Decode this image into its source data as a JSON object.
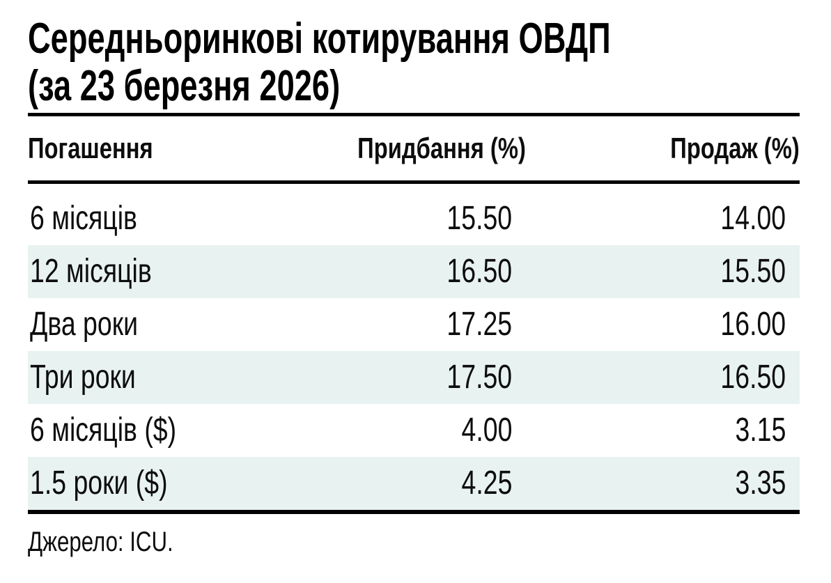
{
  "title": "Середньоринкові котирування ОВДП\n(за 23 березня 2026)",
  "table": {
    "headers": [
      "Погашення",
      "Придбання (%)",
      "Продаж (%)"
    ],
    "rows": [
      {
        "maturity": "6 місяців",
        "bid": "15.50",
        "ask": "14.00"
      },
      {
        "maturity": "12 місяців",
        "bid": "16.50",
        "ask": "15.50"
      },
      {
        "maturity": "Два роки",
        "bid": "17.25",
        "ask": "16.00"
      },
      {
        "maturity": "Три роки",
        "bid": "17.50",
        "ask": "16.50"
      },
      {
        "maturity": "6 місяців ($)",
        "bid": "4.00",
        "ask": "3.15"
      },
      {
        "maturity": "1.5 роки ($)",
        "bid": "4.25",
        "ask": "3.35"
      }
    ]
  },
  "source": "Джерело: ICU.",
  "colors": {
    "stripe": "#e8f2f1",
    "rule": "#000000",
    "text": "#0d0d0d"
  },
  "chart_data": {
    "type": "table",
    "title": "Середньоринкові котирування ОВДП (за 23 березня 2026)",
    "columns": [
      "Погашення",
      "Придбання (%)",
      "Продаж (%)"
    ],
    "rows": [
      [
        "6 місяців",
        15.5,
        14.0
      ],
      [
        "12 місяців",
        16.5,
        15.5
      ],
      [
        "Два роки",
        17.25,
        16.0
      ],
      [
        "Три роки",
        17.5,
        16.5
      ],
      [
        "6 місяців ($)",
        4.0,
        3.15
      ],
      [
        "1.5 роки ($)",
        4.25,
        3.35
      ]
    ],
    "source": "Джерело: ICU."
  }
}
